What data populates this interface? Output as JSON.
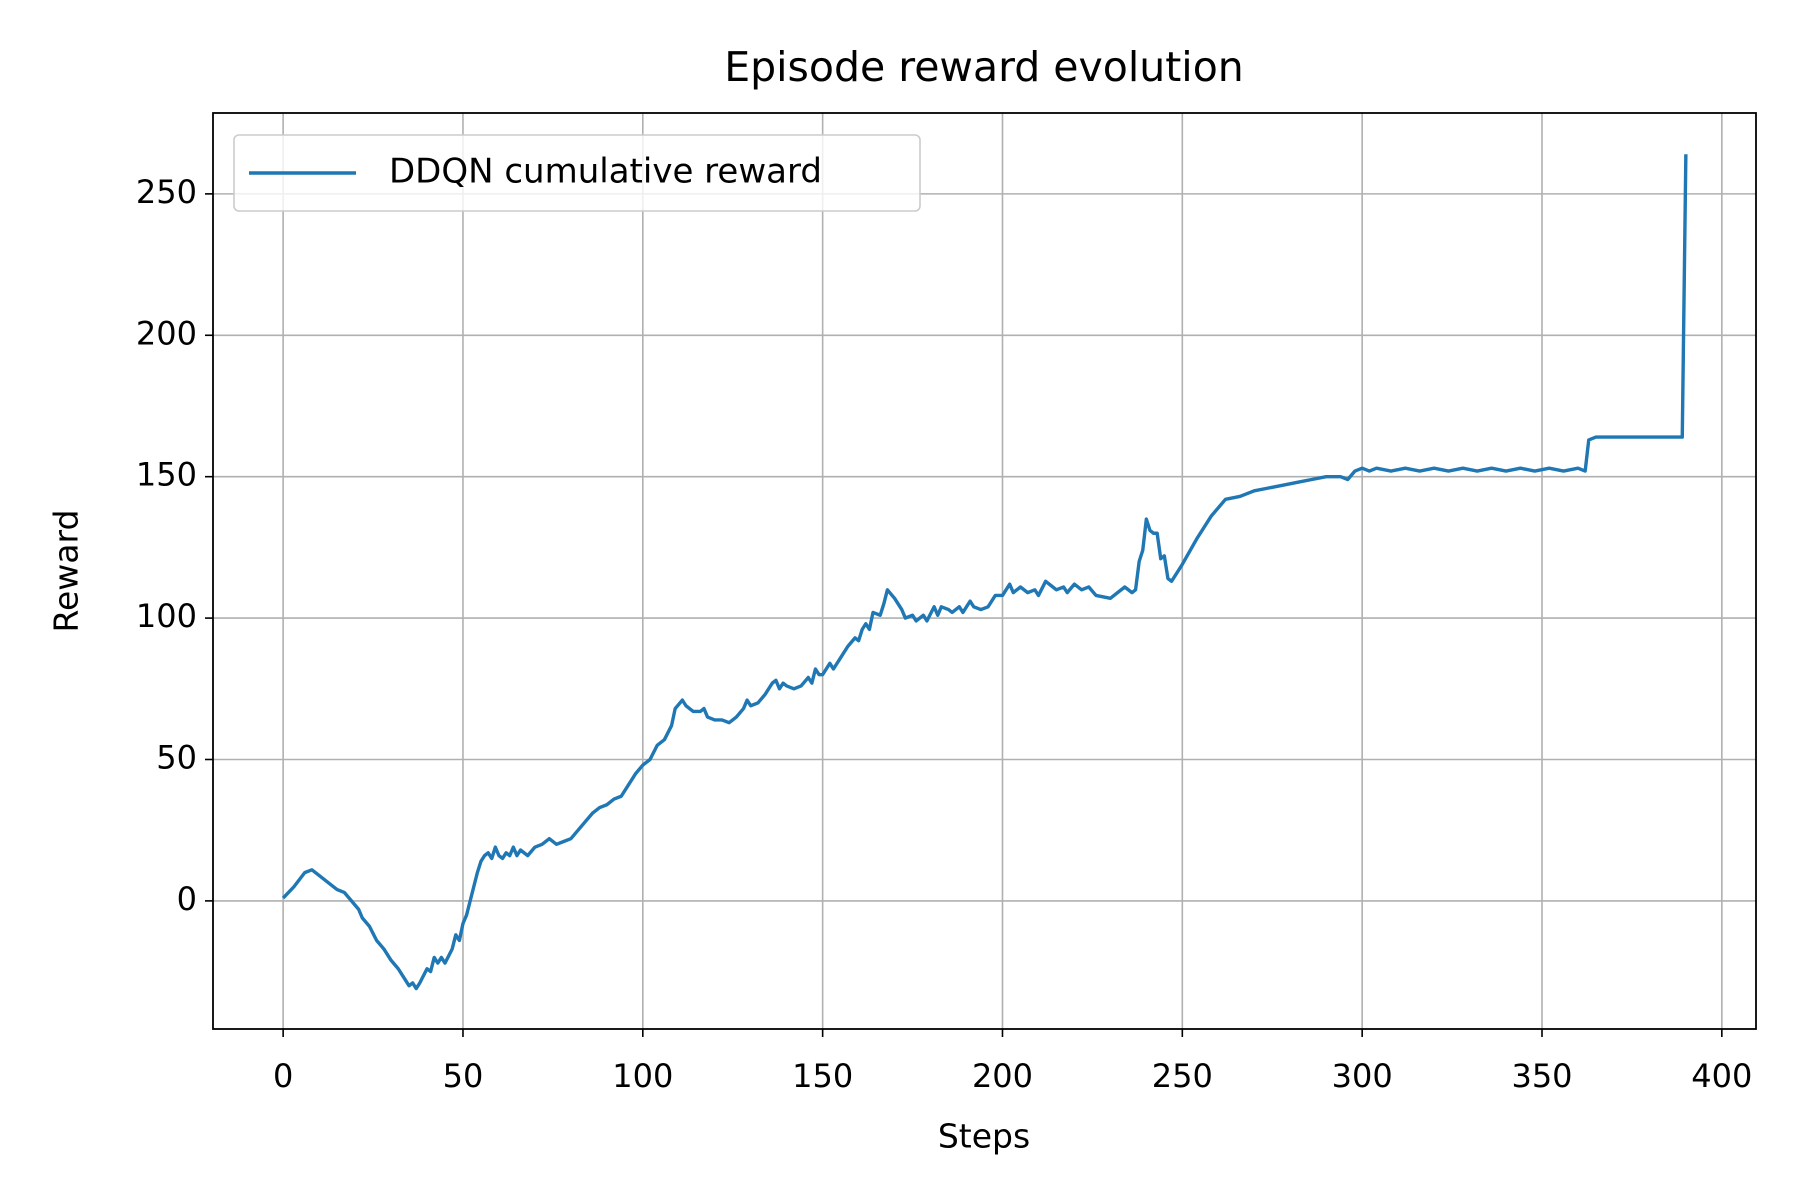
{
  "chart_data": {
    "type": "line",
    "title": "Episode reward evolution",
    "x_label": "Steps",
    "y_label": "Reward",
    "x": [
      0,
      3,
      6,
      8,
      10,
      13,
      15,
      17,
      19,
      21,
      22,
      24,
      26,
      28,
      30,
      32,
      34,
      35,
      36,
      37,
      38,
      40,
      41,
      42,
      43,
      44,
      45,
      47,
      48,
      49,
      50,
      51,
      52,
      54,
      55,
      56,
      57,
      58,
      59,
      60,
      61,
      62,
      63,
      64,
      65,
      66,
      68,
      70,
      72,
      74,
      76,
      78,
      80,
      82,
      84,
      86,
      88,
      90,
      92,
      94,
      96,
      98,
      100,
      102,
      104,
      106,
      108,
      109,
      111,
      112,
      114,
      116,
      117,
      118,
      120,
      122,
      124,
      126,
      128,
      129,
      130,
      132,
      134,
      136,
      137,
      138,
      139,
      140,
      142,
      144,
      146,
      147,
      148,
      149,
      150,
      152,
      153,
      155,
      157,
      159,
      160,
      161,
      162,
      163,
      164,
      166,
      167,
      168,
      170,
      172,
      173,
      175,
      176,
      178,
      179,
      181,
      182,
      183,
      185,
      186,
      188,
      189,
      191,
      192,
      194,
      196,
      198,
      200,
      202,
      203,
      205,
      207,
      209,
      210,
      212,
      214,
      215,
      217,
      218,
      220,
      222,
      224,
      226,
      230,
      232,
      234,
      236,
      237,
      238,
      239,
      240,
      241,
      242,
      243,
      244,
      245,
      246,
      247,
      248,
      250,
      254,
      258,
      262,
      266,
      270,
      274,
      278,
      282,
      286,
      290,
      294,
      296,
      298,
      300,
      302,
      304,
      308,
      312,
      316,
      320,
      324,
      328,
      332,
      336,
      340,
      344,
      348,
      352,
      356,
      360,
      362,
      363,
      365,
      389,
      390
    ],
    "series": [
      {
        "name": "DDQN cumulative reward",
        "color": "#1f77b4",
        "values": [
          1,
          5,
          10,
          11,
          9,
          6,
          4,
          3,
          0,
          -3,
          -6,
          -9,
          -14,
          -17,
          -21,
          -24,
          -28,
          -30,
          -29,
          -31,
          -29,
          -24,
          -25,
          -20,
          -22,
          -20,
          -22,
          -17,
          -12,
          -14,
          -8,
          -5,
          0,
          10,
          14,
          16,
          17,
          15,
          19,
          16,
          15,
          17,
          16,
          19,
          16,
          18,
          16,
          19,
          20,
          22,
          20,
          21,
          22,
          25,
          28,
          31,
          33,
          34,
          36,
          37,
          41,
          45,
          48,
          50,
          55,
          57,
          62,
          68,
          71,
          69,
          67,
          67,
          68,
          65,
          64,
          64,
          63,
          65,
          68,
          71,
          69,
          70,
          73,
          77,
          78,
          75,
          77,
          76,
          75,
          76,
          79,
          77,
          82,
          80,
          80,
          84,
          82,
          86,
          90,
          93,
          92,
          96,
          98,
          96,
          102,
          101,
          105,
          110,
          107,
          103,
          100,
          101,
          99,
          101,
          99,
          104,
          101,
          104,
          103,
          102,
          104,
          102,
          106,
          104,
          103,
          104,
          108,
          108,
          112,
          109,
          111,
          109,
          110,
          108,
          113,
          111,
          110,
          111,
          109,
          112,
          110,
          111,
          108,
          107,
          109,
          111,
          109,
          110,
          120,
          124,
          135,
          131,
          130,
          130,
          121,
          122,
          114,
          113,
          115,
          119,
          128,
          136,
          142,
          143,
          145,
          146,
          147,
          148,
          149,
          150,
          150,
          149,
          152,
          153,
          152,
          153,
          152,
          153,
          152,
          153,
          152,
          153,
          152,
          153,
          152,
          153,
          152,
          153,
          152,
          153,
          152,
          163,
          164,
          164,
          264
        ]
      }
    ],
    "xlim": [
      -19.5,
      409.5
    ],
    "ylim": [
      -45.3,
      278.6
    ],
    "xticks": [
      0,
      50,
      100,
      150,
      200,
      250,
      300,
      350,
      400
    ],
    "yticks": [
      0,
      50,
      100,
      150,
      200,
      250
    ],
    "grid": true,
    "legend": "upper left"
  }
}
